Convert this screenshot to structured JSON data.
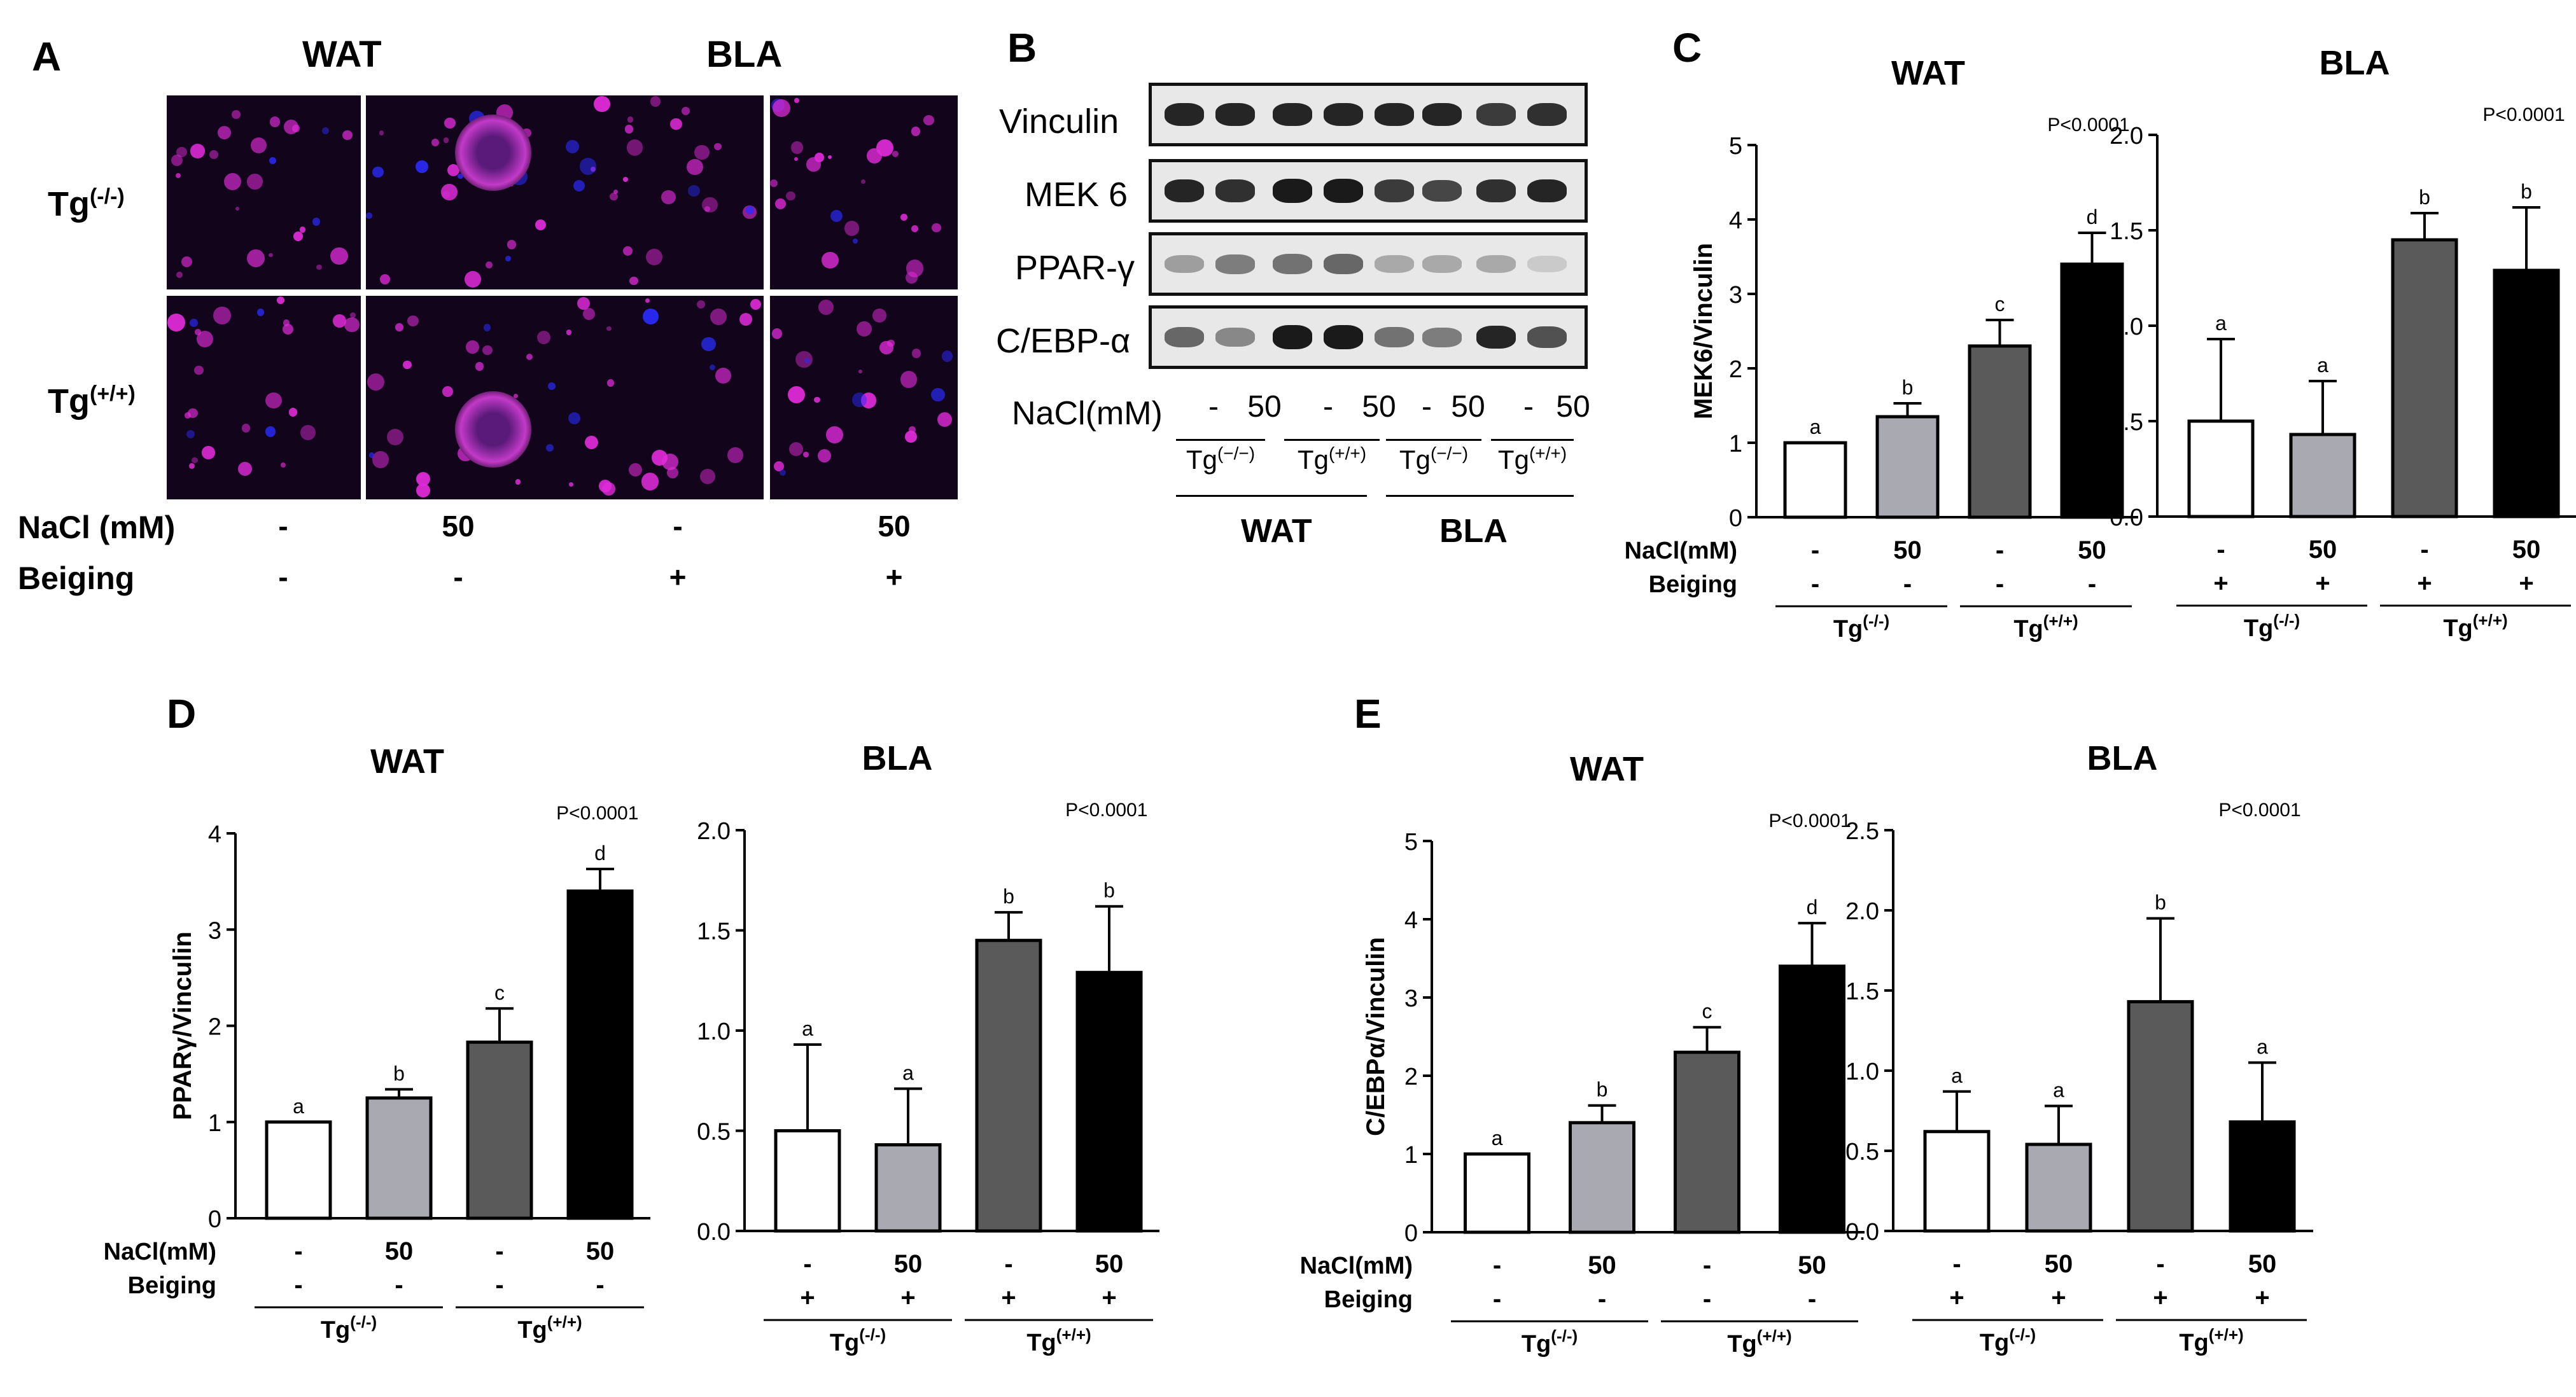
{
  "panel_labels": {
    "A": "A",
    "B": "B",
    "C": "C",
    "D": "D",
    "E": "E"
  },
  "panel_a": {
    "col_titles": [
      "WAT",
      "BLA"
    ],
    "row_labels": [
      {
        "base": "Tg",
        "sup": "(-/-)"
      },
      {
        "base": "Tg",
        "sup": "(+/+)"
      }
    ],
    "nacl_label": "NaCl (mM)",
    "beiging_label": "Beiging",
    "nacl_values": [
      "-",
      "50",
      "-",
      "50"
    ],
    "beiging_values": [
      "-",
      "-",
      "+",
      "+"
    ]
  },
  "panel_b": {
    "proteins": [
      "Vinculin",
      "MEK 6",
      "PPAR-γ",
      "C/EBP-α"
    ],
    "nacl_label": "NaCl(mM)",
    "lane_values": [
      "-",
      "50",
      "-",
      "50",
      "-",
      "50",
      "-",
      "50"
    ],
    "genotypes": [
      {
        "base": "Tg",
        "sup": "(−/−)"
      },
      {
        "base": "Tg",
        "sup": "(+/+)"
      },
      {
        "base": "Tg",
        "sup": "(−/−)"
      },
      {
        "base": "Tg",
        "sup": "(+/+)"
      }
    ],
    "tissues": [
      "WAT",
      "BLA"
    ],
    "band_intensity": {
      "Vinculin": [
        0.9,
        0.9,
        0.9,
        0.9,
        0.9,
        0.9,
        0.8,
        0.85
      ],
      "MEK 6": [
        0.9,
        0.85,
        0.95,
        0.95,
        0.8,
        0.75,
        0.85,
        0.9
      ],
      "PPAR-γ": [
        0.35,
        0.5,
        0.55,
        0.6,
        0.3,
        0.3,
        0.3,
        0.15
      ],
      "C/EBP-α": [
        0.6,
        0.45,
        0.95,
        0.95,
        0.55,
        0.5,
        0.9,
        0.7
      ]
    }
  },
  "colors": {
    "bar_fills": [
      "#ffffff",
      "#a9a9b1",
      "#5a5a5a",
      "#000000"
    ],
    "bar_stroke": "#000000"
  },
  "chart_data": [
    {
      "id": "C-WAT",
      "panel": "C",
      "type": "bar",
      "title": "WAT",
      "ylabel": "MEK6/Vinculin",
      "ylim": [
        0,
        5
      ],
      "yticks": [
        "0",
        "1",
        "2",
        "3",
        "4",
        "5"
      ],
      "yticks_num": [
        0,
        1,
        2,
        3,
        4,
        5
      ],
      "pvalue": "P<0.0001",
      "values": [
        1.0,
        1.35,
        2.3,
        3.4
      ],
      "errors": [
        0,
        0.18,
        0.35,
        0.42
      ],
      "letters": [
        "a",
        "b",
        "c",
        "d"
      ],
      "row_labels": [
        "NaCl(mM)",
        "Beiging"
      ],
      "nacl": [
        "-",
        "50",
        "-",
        "50"
      ],
      "beiging": [
        "-",
        "-",
        "-",
        "-"
      ],
      "groups": [
        {
          "base": "Tg",
          "sup": "(-/-)"
        },
        {
          "base": "Tg",
          "sup": "(+/+)"
        }
      ]
    },
    {
      "id": "C-BLA",
      "panel": "C",
      "type": "bar",
      "title": "BLA",
      "ylabel": "",
      "ylim": [
        0,
        2
      ],
      "yticks": [
        "0.0",
        "0.5",
        "1.0",
        "1.5",
        "2.0"
      ],
      "yticks_num": [
        0,
        0.5,
        1,
        1.5,
        2
      ],
      "pvalue": "P<0.0001",
      "values": [
        0.5,
        0.43,
        1.45,
        1.29
      ],
      "errors": [
        0.43,
        0.28,
        0.14,
        0.33
      ],
      "letters": [
        "a",
        "a",
        "b",
        "b"
      ],
      "row_labels": [
        "",
        ""
      ],
      "nacl": [
        "-",
        "50",
        "-",
        "50"
      ],
      "beiging": [
        "+",
        "+",
        "+",
        "+"
      ],
      "groups": [
        {
          "base": "Tg",
          "sup": "(-/-)"
        },
        {
          "base": "Tg",
          "sup": "(+/+)"
        }
      ]
    },
    {
      "id": "D-WAT",
      "panel": "D",
      "type": "bar",
      "title": "WAT",
      "ylabel": "PPARγ/Vinculin",
      "ylim": [
        0,
        4
      ],
      "yticks": [
        "0",
        "1",
        "2",
        "3",
        "4"
      ],
      "yticks_num": [
        0,
        1,
        2,
        3,
        4
      ],
      "pvalue": "P<0.0001",
      "values": [
        1.0,
        1.25,
        1.83,
        3.4
      ],
      "errors": [
        0,
        0.09,
        0.35,
        0.23
      ],
      "letters": [
        "a",
        "b",
        "c",
        "d"
      ],
      "row_labels": [
        "NaCl(mM)",
        "Beiging"
      ],
      "nacl": [
        "-",
        "50",
        "-",
        "50"
      ],
      "beiging": [
        "-",
        "-",
        "-",
        "-"
      ],
      "groups": [
        {
          "base": "Tg",
          "sup": "(-/-)"
        },
        {
          "base": "Tg",
          "sup": "(+/+)"
        }
      ]
    },
    {
      "id": "D-BLA",
      "panel": "D",
      "type": "bar",
      "title": "BLA",
      "ylabel": "",
      "ylim": [
        0,
        2
      ],
      "yticks": [
        "0.0",
        "0.5",
        "1.0",
        "1.5",
        "2.0"
      ],
      "yticks_num": [
        0,
        0.5,
        1,
        1.5,
        2
      ],
      "pvalue": "P<0.0001",
      "values": [
        0.5,
        0.43,
        1.45,
        1.29
      ],
      "errors": [
        0.43,
        0.28,
        0.14,
        0.33
      ],
      "letters": [
        "a",
        "a",
        "b",
        "b"
      ],
      "row_labels": [
        "",
        ""
      ],
      "nacl": [
        "-",
        "50",
        "-",
        "50"
      ],
      "beiging": [
        "+",
        "+",
        "+",
        "+"
      ],
      "groups": [
        {
          "base": "Tg",
          "sup": "(-/-)"
        },
        {
          "base": "Tg",
          "sup": "(+/+)"
        }
      ]
    },
    {
      "id": "E-WAT",
      "panel": "E",
      "type": "bar",
      "title": "WAT",
      "ylabel": "C/EBPα/Vinculin",
      "ylim": [
        0,
        5
      ],
      "yticks": [
        "0",
        "1",
        "2",
        "3",
        "4",
        "5"
      ],
      "yticks_num": [
        0,
        1,
        2,
        3,
        4,
        5
      ],
      "pvalue": "P<0.0001",
      "values": [
        1.0,
        1.4,
        2.3,
        3.4
      ],
      "errors": [
        0,
        0.22,
        0.32,
        0.55
      ],
      "letters": [
        "a",
        "b",
        "c",
        "d"
      ],
      "row_labels": [
        "NaCl(mM)",
        "Beiging"
      ],
      "nacl": [
        "-",
        "50",
        "-",
        "50"
      ],
      "beiging": [
        "-",
        "-",
        "-",
        "-"
      ],
      "groups": [
        {
          "base": "Tg",
          "sup": "(-/-)"
        },
        {
          "base": "Tg",
          "sup": "(+/+)"
        }
      ]
    },
    {
      "id": "E-BLA",
      "panel": "E",
      "type": "bar",
      "title": "BLA",
      "ylabel": "",
      "ylim": [
        0,
        2.5
      ],
      "yticks": [
        "0.0",
        "0.5",
        "1.0",
        "1.5",
        "2.0",
        "2.5"
      ],
      "yticks_num": [
        0,
        0.5,
        1,
        1.5,
        2,
        2.5
      ],
      "pvalue": "P<0.0001",
      "values": [
        0.62,
        0.54,
        1.43,
        0.68
      ],
      "errors": [
        0.25,
        0.24,
        0.52,
        0.37
      ],
      "letters": [
        "a",
        "a",
        "b",
        "a"
      ],
      "row_labels": [
        "",
        ""
      ],
      "nacl": [
        "-",
        "50",
        "-",
        "50"
      ],
      "beiging": [
        "+",
        "+",
        "+",
        "+"
      ],
      "groups": [
        {
          "base": "Tg",
          "sup": "(-/-)"
        },
        {
          "base": "Tg",
          "sup": "(+/+)"
        }
      ]
    }
  ]
}
